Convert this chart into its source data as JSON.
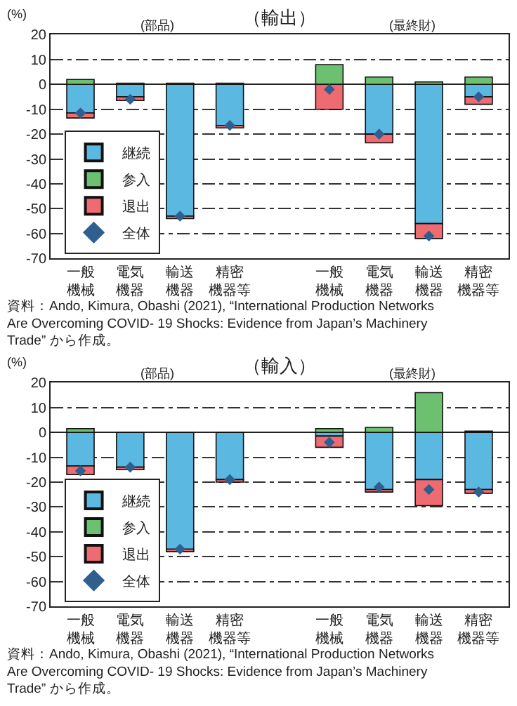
{
  "chart_data": [
    {
      "type": "bar",
      "title": "（輸出）",
      "ylabel": "(%)",
      "stacked": true,
      "categories": [
        "一般機械",
        "電気機器",
        "輸送機器",
        "精密機器等",
        null,
        "一般機械",
        "電気機器",
        "輸送機器",
        "精密機器等"
      ],
      "series": [
        {
          "name": "継続",
          "color": "#5bb8e0",
          "values": [
            -11.5,
            -5,
            -53,
            -16.5,
            null,
            0,
            -20,
            -56,
            -5
          ]
        },
        {
          "name": "参入",
          "color": "#6cc070",
          "values": [
            2,
            0.5,
            0.5,
            0.5,
            null,
            8,
            3,
            1,
            3
          ]
        },
        {
          "name": "退出",
          "color": "#ef6b72",
          "values": [
            -2,
            -1.5,
            -1,
            -1,
            null,
            -10,
            -3.5,
            -6,
            -3
          ]
        },
        {
          "name": "全体",
          "type": "scatter",
          "marker": "diamond",
          "color": "#2f5f8f",
          "values": [
            -11.5,
            -6,
            -53,
            -16.5,
            null,
            -2,
            -20,
            -61,
            -5
          ]
        }
      ],
      "ylim": [
        -70,
        20
      ],
      "yticks": [
        -70,
        -60,
        -50,
        -40,
        -30,
        -20,
        -10,
        0,
        10,
        20
      ],
      "grid": "y",
      "legend": "bottom left",
      "annotations": [
        "(部品)",
        "(最終財)",
        "資料：Ando, Kimura, Obashi (2021), “International Production Networks Are Overcoming COVID- 19 Shocks: Evidence from Japan’s Machinery Trade” から作成。"
      ]
    },
    {
      "type": "bar",
      "title": "（輸入）",
      "ylabel": "(%)",
      "stacked": true,
      "categories": [
        "一般機械",
        "電気機器",
        "輸送機器",
        "精密機器等",
        null,
        "一般機械",
        "電気機器",
        "輸送機器",
        "精密機器等"
      ],
      "series": [
        {
          "name": "継続",
          "color": "#5bb8e0",
          "values": [
            -13.5,
            -14,
            -47,
            -19,
            null,
            -1.5,
            -23,
            -19,
            -23
          ]
        },
        {
          "name": "参入",
          "color": "#6cc070",
          "values": [
            1.5,
            null,
            null,
            null,
            null,
            1.5,
            2,
            16,
            0.5
          ]
        },
        {
          "name": "退出",
          "color": "#ef6b72",
          "values": [
            -3.5,
            -1,
            -1,
            -1,
            null,
            -4.5,
            -1,
            -10.5,
            -1.5
          ]
        },
        {
          "name": "全体",
          "type": "scatter",
          "marker": "diamond",
          "color": "#2f5f8f",
          "values": [
            -15.5,
            -14,
            -47,
            -19,
            null,
            -4,
            -22,
            -23,
            -24
          ]
        }
      ],
      "ylim": [
        -70,
        20
      ],
      "yticks": [
        -70,
        -60,
        -50,
        -40,
        -30,
        -20,
        -10,
        0,
        10,
        20
      ],
      "grid": "y",
      "legend": "bottom left",
      "annotations": [
        "(部品)",
        "(最終財)",
        "資料：Ando, Kimura, Obashi (2021), “International Production Networks Are Overcoming COVID- 19 Shocks: Evidence from Japan’s Machinery Trade” から作成。"
      ]
    }
  ]
}
